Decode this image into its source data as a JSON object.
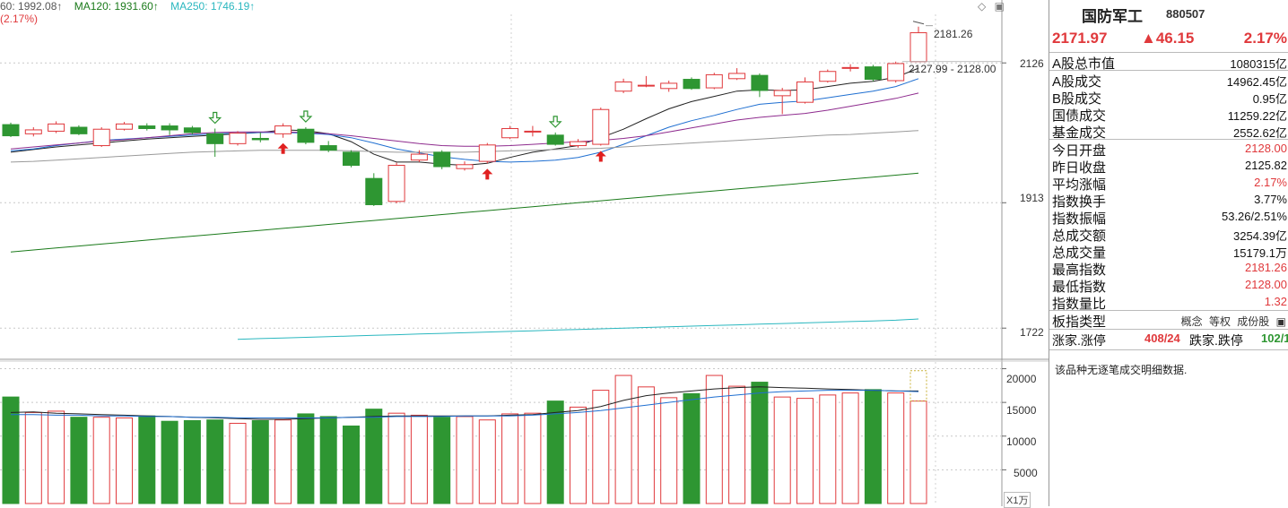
{
  "legend": {
    "ma60": "60: 1992.08↑",
    "ma120": "MA120: 1931.60↑",
    "ma250": "MA250: 1746.19↑",
    "pct": "(2.17%)",
    "colors": {
      "ma60": "#555555",
      "ma120": "#1a7a1a",
      "ma250": "#2ab7bf",
      "up": "#e0393c",
      "down": "#2e9632"
    }
  },
  "top_icons": [
    "◇",
    "▣"
  ],
  "chart_data": [
    {
      "type": "candlestick",
      "title": "",
      "ylim": [
        1680,
        2200
      ],
      "y_ticks": [
        {
          "value": 2126,
          "label": "2126"
        },
        {
          "value": 1913,
          "label": "1913"
        },
        {
          "value": 1722,
          "label": "1722"
        }
      ],
      "annotations": {
        "high_label": "2181.26",
        "low_label": "2127.99 - 2128.00",
        "high_value": 2181.26,
        "low_value": 2128.0
      },
      "candles": [
        {
          "o": 2032,
          "c": 2015,
          "h": 2035,
          "l": 2013
        },
        {
          "o": 2018,
          "c": 2024,
          "h": 2028,
          "l": 2014
        },
        {
          "o": 2022,
          "c": 2033,
          "h": 2037,
          "l": 2019
        },
        {
          "o": 2028,
          "c": 2018,
          "h": 2031,
          "l": 2016
        },
        {
          "o": 2000,
          "c": 2025,
          "h": 2028,
          "l": 1998
        },
        {
          "o": 2025,
          "c": 2033,
          "h": 2036,
          "l": 2023
        },
        {
          "o": 2030,
          "c": 2026,
          "h": 2034,
          "l": 2023
        },
        {
          "o": 2030,
          "c": 2024,
          "h": 2034,
          "l": 2016
        },
        {
          "o": 2027,
          "c": 2020,
          "h": 2030,
          "l": 2017
        },
        {
          "o": 2018,
          "c": 2003,
          "h": 2026,
          "l": 1983
        },
        {
          "o": 2003,
          "c": 2019,
          "h": 2022,
          "l": 2000
        },
        {
          "o": 2011,
          "c": 2009,
          "h": 2020,
          "l": 2005
        },
        {
          "o": 2018,
          "c": 2030,
          "h": 2034,
          "l": 2012
        },
        {
          "o": 2025,
          "c": 2005,
          "h": 2028,
          "l": 2002
        },
        {
          "o": 2000,
          "c": 1993,
          "h": 2007,
          "l": 1990
        },
        {
          "o": 1990,
          "c": 1970,
          "h": 1993,
          "l": 1967
        },
        {
          "o": 1950,
          "c": 1910,
          "h": 1958,
          "l": 1908
        },
        {
          "o": 1915,
          "c": 1970,
          "h": 1974,
          "l": 1912
        },
        {
          "o": 1978,
          "c": 1987,
          "h": 1993,
          "l": 1975
        },
        {
          "o": 1990,
          "c": 1968,
          "h": 1993,
          "l": 1964
        },
        {
          "o": 1965,
          "c": 1971,
          "h": 1976,
          "l": 1962
        },
        {
          "o": 1976,
          "c": 2001,
          "h": 2004,
          "l": 1973
        },
        {
          "o": 2012,
          "c": 2026,
          "h": 2030,
          "l": 2010
        },
        {
          "o": 2022,
          "c": 2022,
          "h": 2030,
          "l": 2014
        },
        {
          "o": 2016,
          "c": 2002,
          "h": 2020,
          "l": 2000
        },
        {
          "o": 2000,
          "c": 2006,
          "h": 2010,
          "l": 1997
        },
        {
          "o": 2002,
          "c": 2055,
          "h": 2058,
          "l": 2000
        },
        {
          "o": 2083,
          "c": 2097,
          "h": 2102,
          "l": 2080
        },
        {
          "o": 2092,
          "c": 2092,
          "h": 2106,
          "l": 2089
        },
        {
          "o": 2087,
          "c": 2095,
          "h": 2099,
          "l": 2082
        },
        {
          "o": 2101,
          "c": 2087,
          "h": 2104,
          "l": 2085
        },
        {
          "o": 2088,
          "c": 2108,
          "h": 2111,
          "l": 2086
        },
        {
          "o": 2102,
          "c": 2110,
          "h": 2118,
          "l": 2100
        },
        {
          "o": 2107,
          "c": 2084,
          "h": 2110,
          "l": 2074
        },
        {
          "o": 2076,
          "c": 2084,
          "h": 2088,
          "l": 2048
        },
        {
          "o": 2066,
          "c": 2097,
          "h": 2104,
          "l": 2064
        },
        {
          "o": 2098,
          "c": 2113,
          "h": 2116,
          "l": 2096
        },
        {
          "o": 2119,
          "c": 2119,
          "h": 2124,
          "l": 2113
        },
        {
          "o": 2120,
          "c": 2101,
          "h": 2123,
          "l": 2098
        },
        {
          "o": 2099,
          "c": 2125,
          "h": 2128,
          "l": 2096
        },
        {
          "o": 2128.0,
          "c": 2171.97,
          "h": 2181.26,
          "l": 2127.99
        }
      ],
      "markers": [
        {
          "index": 9,
          "type": "sell"
        },
        {
          "index": 12,
          "type": "buy"
        },
        {
          "index": 13,
          "type": "sell"
        },
        {
          "index": 21,
          "type": "buy"
        },
        {
          "index": 24,
          "type": "sell"
        },
        {
          "index": 26,
          "type": "buy"
        }
      ],
      "series": [
        {
          "values": [
            1990,
            1994,
            1998,
            2001,
            2004,
            2007,
            2010,
            2012,
            2014,
            2016,
            2018,
            2020,
            2024,
            2023,
            2018,
            2006,
            1987,
            1975,
            1975,
            1972,
            1970,
            1973,
            1982,
            1990,
            1995,
            2000,
            2012,
            2025,
            2041,
            2056,
            2067,
            2075,
            2083,
            2085,
            2084,
            2085,
            2090,
            2095,
            2098,
            2104,
            2118
          ]
        },
        {
          "values": [
            1992,
            1995,
            2000,
            2004,
            2008,
            2010,
            2012,
            2014,
            2016,
            2018,
            2019,
            2020,
            2020,
            2019,
            2017,
            2012,
            2004,
            1995,
            1989,
            1983,
            1979,
            1976,
            1975,
            1976,
            1978,
            1982,
            1990,
            2002,
            2015,
            2028,
            2038,
            2046,
            2055,
            2063,
            2066,
            2068,
            2073,
            2078,
            2083,
            2090,
            2102
          ]
        },
        {
          "values": [
            1995,
            1998,
            2001,
            2004,
            2007,
            2009,
            2012,
            2015,
            2018,
            2020,
            2021,
            2021,
            2021,
            2020,
            2018,
            2015,
            2011,
            2007,
            2003,
            2000,
            1999,
            1999,
            2000,
            2002,
            2004,
            2006,
            2008,
            2011,
            2015,
            2021,
            2027,
            2033,
            2039,
            2043,
            2046,
            2049,
            2054,
            2060,
            2066,
            2072,
            2080
          ]
        },
        {
          "values": [
            1975,
            1976,
            1978,
            1980,
            1982,
            1984,
            1986,
            1988,
            1990,
            1991,
            1992,
            1993,
            1993,
            1993,
            1993,
            1992,
            1991,
            1990,
            1990,
            1990,
            1990,
            1991,
            1992,
            1993,
            1994,
            1995,
            1996,
            1998,
            2000,
            2002,
            2004,
            2006,
            2008,
            2010,
            2012,
            2014,
            2016,
            2017,
            2019,
            2021,
            2023
          ]
        },
        {
          "values": [
            1838,
            1841,
            1844,
            1847,
            1850,
            1853,
            1856,
            1859,
            1862,
            1865,
            1868,
            1871,
            1874,
            1877,
            1880,
            1883,
            1886,
            1889,
            1892,
            1895,
            1898,
            1901,
            1904,
            1907,
            1910,
            1913,
            1916,
            1919,
            1922,
            1925,
            1928,
            1931,
            1934,
            1937,
            1940,
            1943,
            1946,
            1949,
            1952,
            1955,
            1958
          ]
        },
        {
          "start_index": 10,
          "values": [
            1705,
            1706,
            1707,
            1708,
            1709,
            1710,
            1711,
            1712,
            1713,
            1714,
            1715,
            1716,
            1717,
            1718,
            1719,
            1720,
            1721,
            1722,
            1723,
            1724,
            1725,
            1726,
            1727,
            1728,
            1729,
            1730,
            1731,
            1732,
            1733,
            1734,
            1736
          ]
        }
      ]
    },
    {
      "type": "bar",
      "unit": "X1万",
      "ylim": [
        0,
        21000
      ],
      "y_ticks": [
        {
          "value": 20000,
          "label": "20000"
        },
        {
          "value": 15000,
          "label": "15000"
        },
        {
          "value": 10000,
          "label": "10000"
        },
        {
          "value": 5000,
          "label": "5000"
        }
      ],
      "values": [
        15800,
        13500,
        13700,
        12800,
        12800,
        12700,
        13000,
        12200,
        12300,
        12400,
        11900,
        12300,
        12400,
        13300,
        12900,
        11500,
        14000,
        13400,
        13100,
        12800,
        12900,
        12400,
        13300,
        13400,
        15200,
        14300,
        16800,
        19000,
        17300,
        15700,
        16300,
        19000,
        17400,
        18000,
        15800,
        15600,
        16100,
        16400,
        16900,
        16400,
        15200
      ],
      "series": [
        {
          "values": [
            13500,
            13600,
            13400,
            13300,
            13200,
            13100,
            13000,
            12900,
            12800,
            12700,
            12600,
            12500,
            12500,
            12600,
            12700,
            12800,
            12900,
            13000,
            13000,
            13000,
            13000,
            13000,
            13100,
            13200,
            13500,
            13800,
            14400,
            15300,
            16000,
            16400,
            16700,
            17000,
            17200,
            17300,
            17200,
            17100,
            17000,
            16900,
            16800,
            16700,
            16700
          ]
        },
        {
          "values": [
            13200,
            13200,
            13100,
            13100,
            13000,
            13000,
            12900,
            12900,
            12800,
            12800,
            12700,
            12700,
            12700,
            12700,
            12700,
            12800,
            12800,
            12900,
            12900,
            12900,
            13000,
            13000,
            13000,
            13100,
            13300,
            13500,
            13800,
            14200,
            14600,
            15000,
            15400,
            15800,
            16100,
            16400,
            16600,
            16700,
            16800,
            16800,
            16800,
            16700,
            16600
          ]
        }
      ]
    }
  ],
  "panel": {
    "name": "国防军工",
    "code": "880507",
    "price": "2171.97",
    "change": "▲46.15",
    "pct": "2.17%",
    "rows": [
      {
        "label": "A股总市值",
        "value": "1080315亿",
        "red": false
      },
      {
        "label": "A股成交",
        "value": "14962.45亿",
        "red": false
      },
      {
        "label": "B股成交",
        "value": "0.95亿",
        "red": false
      },
      {
        "label": "国债成交",
        "value": "11259.22亿",
        "red": false
      },
      {
        "label": "基金成交",
        "value": "2552.62亿",
        "red": false
      },
      {
        "label": "今日开盘",
        "value": "2128.00",
        "red": true
      },
      {
        "label": "昨日收盘",
        "value": "2125.82",
        "red": false
      },
      {
        "label": "平均涨幅",
        "value": "2.17%",
        "red": true
      },
      {
        "label": "指数换手",
        "value": "3.77%",
        "red": false
      },
      {
        "label": "指数振幅",
        "value": "53.26/2.51%",
        "red": false
      },
      {
        "label": "总成交额",
        "value": "3254.39亿",
        "red": false
      },
      {
        "label": "总成交量",
        "value": "15179.1万",
        "red": false
      },
      {
        "label": "最高指数",
        "value": "2181.26",
        "red": true
      },
      {
        "label": "最低指数",
        "value": "2128.00",
        "red": true
      },
      {
        "label": "指数量比",
        "value": "1.32",
        "red": true
      }
    ],
    "type_label": "板指类型",
    "type_tags": [
      "概念",
      "等权",
      "成份股",
      "▣"
    ],
    "limit": {
      "rise_label": "涨家.涨停",
      "rise_value": "408/24",
      "fall_label": "跌家.跌停",
      "fall_value": "102/1"
    },
    "note": "该品种无逐笔成交明细数据."
  }
}
